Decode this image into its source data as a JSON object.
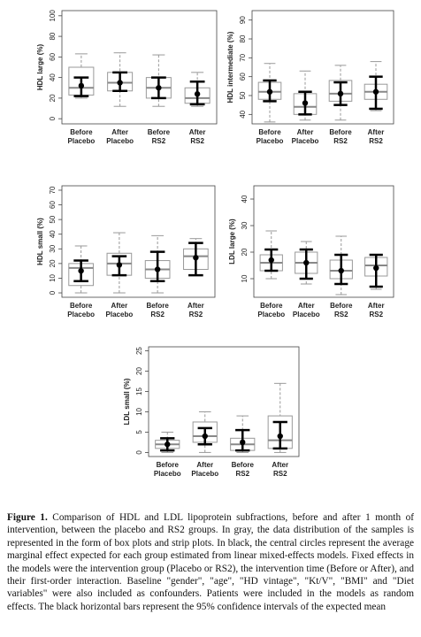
{
  "chart_data": [
    {
      "type": "box",
      "y_label": "HDL large (%)",
      "categories": [
        "Before Placebo",
        "After Placebo",
        "Before RS2",
        "After RS2"
      ],
      "ylim": [
        -5,
        105
      ],
      "yticks": [
        0,
        20,
        40,
        60,
        80,
        100
      ],
      "boxes": [
        {
          "low": 20,
          "q1": 23,
          "median": 30,
          "q3": 50,
          "high": 63
        },
        {
          "low": 12,
          "q1": 27,
          "median": 35,
          "q3": 45,
          "high": 64
        },
        {
          "low": 12,
          "q1": 20,
          "median": 30,
          "q3": 40,
          "high": 62
        },
        {
          "low": 12,
          "q1": 15,
          "median": 20,
          "q3": 30,
          "high": 45
        }
      ],
      "effects": [
        {
          "mean": 32,
          "ci_low": 22,
          "ci_high": 40
        },
        {
          "mean": 35,
          "ci_low": 27,
          "ci_high": 45
        },
        {
          "mean": 30,
          "ci_low": 20,
          "ci_high": 40
        },
        {
          "mean": 24,
          "ci_low": 14,
          "ci_high": 36
        }
      ]
    },
    {
      "type": "box",
      "y_label": "HDL intermediate (%)",
      "categories": [
        "Before Placebo",
        "After Placebo",
        "Before RS2",
        "After RS2"
      ],
      "ylim": [
        35,
        95
      ],
      "yticks": [
        40,
        50,
        60,
        70,
        80,
        90
      ],
      "boxes": [
        {
          "low": 36,
          "q1": 48,
          "median": 52,
          "q3": 57,
          "high": 67
        },
        {
          "low": 37,
          "q1": 40,
          "median": 44,
          "q3": 51,
          "high": 63
        },
        {
          "low": 37,
          "q1": 47,
          "median": 51,
          "q3": 58,
          "high": 66
        },
        {
          "low": 42,
          "q1": 48,
          "median": 52,
          "q3": 56,
          "high": 68
        }
      ],
      "effects": [
        {
          "mean": 52,
          "ci_low": 47,
          "ci_high": 58
        },
        {
          "mean": 46,
          "ci_low": 40,
          "ci_high": 52
        },
        {
          "mean": 51,
          "ci_low": 45,
          "ci_high": 57
        },
        {
          "mean": 52,
          "ci_low": 43,
          "ci_high": 60
        }
      ]
    },
    {
      "type": "box",
      "y_label": "HDL small (%)",
      "categories": [
        "Before Placebo",
        "After Placebo",
        "Before RS2",
        "After RS2"
      ],
      "ylim": [
        -3,
        73
      ],
      "yticks": [
        0,
        10,
        20,
        30,
        40,
        50,
        60,
        70
      ],
      "boxes": [
        {
          "low": 0,
          "q1": 5,
          "median": 17,
          "q3": 20,
          "high": 32
        },
        {
          "low": 0,
          "q1": 12,
          "median": 20,
          "q3": 27,
          "high": 41
        },
        {
          "low": 0,
          "q1": 10,
          "median": 16,
          "q3": 22,
          "high": 39
        },
        {
          "low": 12,
          "q1": 16,
          "median": 25,
          "q3": 30,
          "high": 37
        }
      ],
      "effects": [
        {
          "mean": 15,
          "ci_low": 8,
          "ci_high": 22
        },
        {
          "mean": 19,
          "ci_low": 12,
          "ci_high": 25
        },
        {
          "mean": 16,
          "ci_low": 8,
          "ci_high": 28
        },
        {
          "mean": 24,
          "ci_low": 12,
          "ci_high": 34
        }
      ]
    },
    {
      "type": "box",
      "y_label": "LDL large (%)",
      "categories": [
        "Before Placebo",
        "After Placebo",
        "Before RS2",
        "After RS2"
      ],
      "ylim": [
        3,
        45
      ],
      "yticks": [
        10,
        20,
        30,
        40
      ],
      "boxes": [
        {
          "low": 10,
          "q1": 13,
          "median": 16,
          "q3": 19,
          "high": 28
        },
        {
          "low": 8,
          "q1": 12,
          "median": 16,
          "q3": 20,
          "high": 24
        },
        {
          "low": 4,
          "q1": 10,
          "median": 13,
          "q3": 17,
          "high": 26
        },
        {
          "low": 6,
          "q1": 11,
          "median": 15,
          "q3": 18,
          "high": 19
        }
      ],
      "effects": [
        {
          "mean": 17,
          "ci_low": 13,
          "ci_high": 21
        },
        {
          "mean": 16,
          "ci_low": 10,
          "ci_high": 21
        },
        {
          "mean": 13,
          "ci_low": 8,
          "ci_high": 19
        },
        {
          "mean": 14,
          "ci_low": 7,
          "ci_high": 19
        }
      ]
    },
    {
      "type": "box",
      "y_label": "LDL small (%)",
      "categories": [
        "Before Placebo",
        "After Placebo",
        "Before RS2",
        "After RS2"
      ],
      "ylim": [
        -1,
        26
      ],
      "yticks": [
        0,
        5,
        10,
        15,
        20,
        25
      ],
      "boxes": [
        {
          "low": 0,
          "q1": 1,
          "median": 2,
          "q3": 3,
          "high": 5
        },
        {
          "low": 0,
          "q1": 2.5,
          "median": 4,
          "q3": 7.5,
          "high": 10
        },
        {
          "low": 0,
          "q1": 0.5,
          "median": 2,
          "q3": 3.5,
          "high": 9
        },
        {
          "low": 0,
          "q1": 1,
          "median": 3,
          "q3": 9,
          "high": 17
        }
      ],
      "effects": [
        {
          "mean": 2,
          "ci_low": 0.5,
          "ci_high": 3.5
        },
        {
          "mean": 4,
          "ci_low": 2,
          "ci_high": 6
        },
        {
          "mean": 2.5,
          "ci_low": 0.5,
          "ci_high": 5.5
        },
        {
          "mean": 4,
          "ci_low": 1,
          "ci_high": 7.5
        }
      ]
    }
  ],
  "caption": {
    "label": "Figure 1.",
    "text": "Comparison of HDL and LDL lipoprotein subfractions, before and after 1 month of intervention, between the placebo and RS2 groups. In gray, the data distribution of the samples is represented in the form of box plots and strip plots. In black, the central circles represent the average marginal effect expected for each group estimated from linear mixed-effects models. Fixed effects in the models were the intervention group (Placebo or RS2), the intervention time (Before or After), and their first-order interaction. Baseline \"gender\", \"age\", \"HD vintage\", \"Kt/V\", \"BMI\" and \"Diet variables\" were also included as confounders. Patients were included in the models as random effects. The black horizontal bars represent the 95% confidence intervals of the expected mean"
  }
}
